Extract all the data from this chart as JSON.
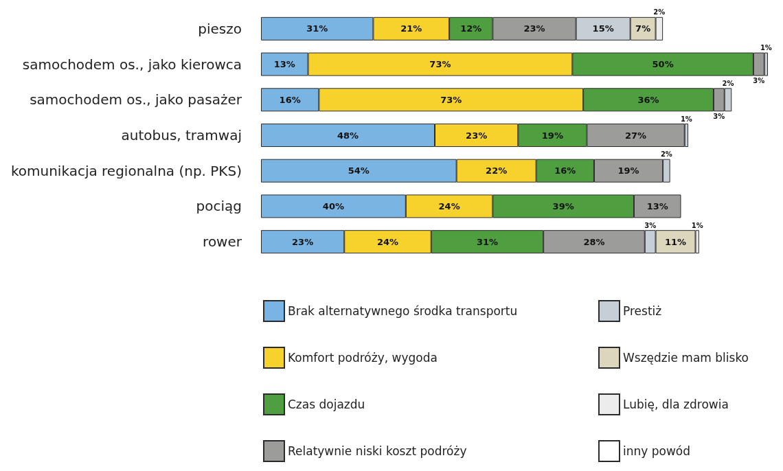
{
  "chart_data": {
    "type": "bar",
    "orientation": "horizontal",
    "stacked": true,
    "legend": "bottom",
    "categories": [
      "pieszo",
      "samochodem os., jako kierowca",
      "samochodem os., jako pasażer",
      "autobus, tramwaj",
      "komunikacja regionalna (np. PKS)",
      "pociąg",
      "rower"
    ],
    "series": [
      {
        "name": "Brak alternatywnego środka transportu",
        "color": "#7ab4e2",
        "values": [
          31,
          13,
          16,
          48,
          54,
          40,
          23
        ],
        "value_labels": [
          "31%",
          "13%",
          "16%",
          "48%",
          "54%",
          "40%",
          "23%"
        ]
      },
      {
        "name": "Komfort podróży, wygoda",
        "color": "#f8d22c",
        "values": [
          21,
          73,
          73,
          23,
          22,
          24,
          24
        ],
        "value_labels": [
          "21%",
          "73%",
          "73%",
          "23%",
          "22%",
          "24%",
          "24%"
        ]
      },
      {
        "name": "Czas dojazdu",
        "color": "#4f9f40",
        "values": [
          12,
          50,
          36,
          19,
          16,
          39,
          31
        ],
        "value_labels": [
          "12%",
          "50%",
          "36%",
          "19%",
          "16%",
          "39%",
          "31%"
        ]
      },
      {
        "name": "Relatywnie niski koszt podróży",
        "color": "#9c9c9a",
        "values": [
          23,
          3,
          3,
          27,
          19,
          13,
          28
        ],
        "value_labels": [
          "23%",
          "3%",
          "3%",
          "27%",
          "19%",
          "13%",
          "28%"
        ]
      },
      {
        "name": "Prestiż",
        "color": "#c6cfd6",
        "values": [
          15,
          1,
          2,
          1,
          2,
          null,
          3
        ],
        "value_labels": [
          "15%",
          "1%",
          "2%",
          "1%",
          "2%",
          null,
          "3%"
        ]
      },
      {
        "name": "Wszędzie mam blisko",
        "color": "#dcd6bd",
        "values": [
          7,
          null,
          null,
          null,
          null,
          null,
          11
        ],
        "value_labels": [
          "7%",
          null,
          null,
          null,
          null,
          null,
          "11%"
        ]
      },
      {
        "name": "Lubię, dla zdrowia",
        "color": "#ececec",
        "values": [
          2,
          null,
          null,
          null,
          null,
          null,
          1
        ],
        "value_labels": [
          "2%",
          null,
          null,
          null,
          null,
          null,
          "1%"
        ]
      },
      {
        "name": "inny powód",
        "color": "#ffffff",
        "values": [
          null,
          null,
          null,
          null,
          null,
          null,
          null
        ]
      }
    ]
  }
}
